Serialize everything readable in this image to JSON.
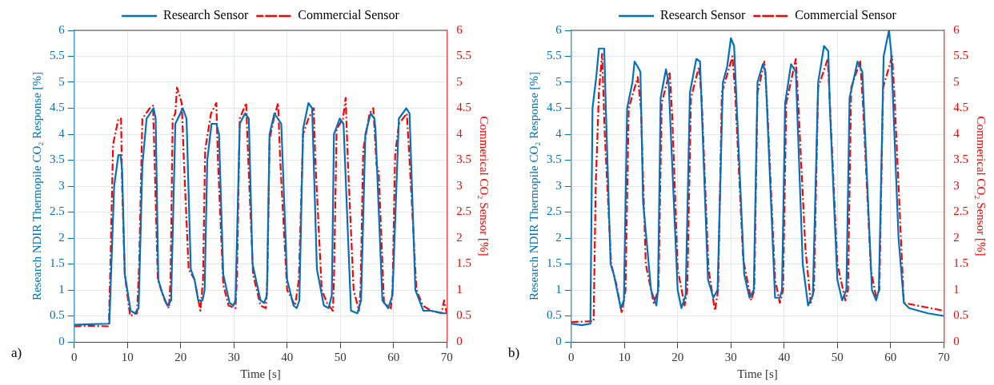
{
  "chart_data": [
    {
      "type": "line",
      "xlabel": "Time [s]",
      "ylabel": "Research NDIR Thermopile CO₂ Response [%]",
      "y2label": "Commerical CO₂ Sensor [%]",
      "annotations": [
        "a)"
      ],
      "xlim": [
        0,
        70
      ],
      "xticks": [
        0,
        10,
        20,
        30,
        40,
        50,
        60,
        70
      ],
      "ylim": [
        0,
        6
      ],
      "yticks": [
        0,
        0.5,
        1,
        1.5,
        2,
        2.5,
        3,
        3.5,
        4,
        4.5,
        5,
        5.5,
        6
      ],
      "y2lim": [
        0,
        6
      ],
      "y2ticks": [
        0,
        0.5,
        1,
        1.5,
        2,
        2.5,
        3,
        3.5,
        4,
        4.5,
        5,
        5.5,
        6
      ],
      "grid": true,
      "legend": "top",
      "marker": "none",
      "series": [
        {
          "name": "Research Sensor",
          "color": "#0072bd",
          "line_style": "solid",
          "x": [
            0,
            3,
            6.6,
            7.5,
            8.3,
            8.7,
            9.0,
            9.5,
            10.6,
            11.4,
            12.1,
            12.8,
            13.6,
            14.9,
            15.3,
            15.8,
            16.5,
            17.5,
            18.2,
            19,
            20.4,
            21.1,
            21.9,
            22.6,
            23.3,
            24.1,
            24.5,
            25,
            25.8,
            26.7,
            27.2,
            28,
            29.2,
            29.9,
            30.3,
            31.1,
            32.1,
            32.8,
            33.5,
            35,
            35.7,
            36.2,
            36.7,
            37.6,
            38.9,
            40,
            41.2,
            41.8,
            42.3,
            43,
            44,
            44.7,
            45.6,
            46.9,
            47.8,
            48.4,
            48.8,
            49.9,
            50.6,
            52,
            53.2,
            53.9,
            54.7,
            55.7,
            56.4,
            56.6,
            57.9,
            59,
            59.8,
            61,
            62.4,
            63,
            64.1,
            65.6,
            67,
            69.5,
            70
          ],
          "values": [
            0.33,
            0.34,
            0.35,
            3.0,
            3.6,
            3.6,
            3.3,
            1.3,
            0.6,
            0.55,
            0.65,
            3.4,
            4.3,
            4.5,
            4.3,
            1.2,
            0.95,
            0.7,
            0.8,
            4.2,
            4.5,
            4.3,
            1.4,
            1.2,
            0.8,
            0.8,
            1.0,
            3.5,
            4.2,
            4.2,
            4.0,
            1.3,
            0.75,
            0.7,
            0.8,
            4.2,
            4.4,
            4.3,
            1.5,
            0.8,
            0.75,
            0.9,
            4.0,
            4.4,
            4.2,
            1.2,
            0.7,
            0.65,
            0.8,
            4.1,
            4.6,
            4.5,
            1.4,
            0.7,
            0.65,
            0.9,
            4.0,
            4.3,
            4.2,
            0.6,
            0.55,
            0.8,
            4.0,
            4.4,
            4.3,
            4.1,
            0.8,
            0.65,
            0.9,
            4.3,
            4.5,
            4.4,
            1.0,
            0.6,
            0.6,
            0.55,
            0.55
          ]
        },
        {
          "name": "Commercial Sensor",
          "color": "#ff0000",
          "line_style": "dashed",
          "axis": "y2",
          "x": [
            0,
            3,
            6.5,
            6.8,
            7.3,
            8.3,
            8.8,
            9.0,
            9.5,
            10.5,
            11.8,
            12.2,
            12.8,
            14.2,
            14.8,
            15.1,
            15.7,
            17,
            17.8,
            18.1,
            18.5,
            19,
            19.3,
            20.2,
            20.6,
            21.5,
            22.6,
            23.7,
            24.2,
            24.6,
            25.7,
            26.7,
            27,
            28,
            29,
            30.3,
            30.6,
            31.1,
            32.3,
            32.7,
            33.6,
            35,
            36,
            36.3,
            36.7,
            37.5,
            38.3,
            38.7,
            40,
            41.5,
            42.2,
            43,
            44,
            45,
            45.3,
            46.5,
            47.5,
            48.6,
            48.8,
            49.3,
            50.5,
            51,
            51.4,
            52.5,
            53.5,
            53.8,
            54.3,
            55.5,
            56.2,
            56.8,
            57.2,
            58.2,
            59.5,
            59.8,
            60.3,
            61,
            62.5,
            63,
            64.3,
            65.5,
            67,
            69,
            69.5,
            70
          ],
          "values": [
            0.3,
            0.31,
            0.3,
            1.5,
            3.8,
            4.3,
            4.3,
            3.0,
            1.3,
            0.5,
            0.55,
            1.5,
            4.3,
            4.5,
            4.55,
            3.5,
            1.2,
            0.8,
            0.65,
            1.2,
            4.3,
            4.4,
            4.9,
            4.6,
            3.5,
            1.4,
            1.2,
            0.6,
            1.2,
            3.7,
            4.4,
            4.6,
            3.5,
            1.1,
            0.7,
            0.65,
            1.3,
            4.3,
            4.6,
            3.5,
            1.3,
            0.7,
            0.65,
            1.2,
            3.9,
            4.3,
            4.6,
            3.5,
            1.0,
            0.7,
            1.2,
            4.0,
            4.3,
            4.5,
            3.5,
            1.0,
            0.75,
            0.6,
            1.2,
            4.1,
            4.3,
            4.7,
            3.5,
            1.0,
            0.6,
            1.0,
            3.7,
            4.4,
            4.5,
            3.4,
            3.3,
            0.75,
            0.65,
            1.0,
            3.6,
            4.2,
            4.4,
            3.5,
            1.0,
            0.7,
            0.6,
            0.55,
            0.8,
            0.55
          ]
        }
      ]
    },
    {
      "type": "line",
      "xlabel": "Time [s]",
      "ylabel": "Research NDIR Thermopile CO₂ Response [%]",
      "y2label": "Commerical CO₂ Sensor [%]",
      "annotations": [
        "b)"
      ],
      "xlim": [
        0,
        70
      ],
      "xticks": [
        0,
        10,
        20,
        30,
        40,
        50,
        60,
        70
      ],
      "ylim": [
        0,
        6
      ],
      "yticks": [
        0,
        0.5,
        1,
        1.5,
        2,
        2.5,
        3,
        3.5,
        4,
        4.5,
        5,
        5.5,
        6
      ],
      "y2lim": [
        0,
        6
      ],
      "y2ticks": [
        0,
        0.5,
        1,
        1.5,
        2,
        2.5,
        3,
        3.5,
        4,
        4.5,
        5,
        5.5,
        6
      ],
      "grid": true,
      "legend": "top",
      "marker": "none",
      "series": [
        {
          "name": "Research Sensor",
          "color": "#0072bd",
          "line_style": "solid",
          "x": [
            0,
            2,
            3.6,
            4.0,
            4.7,
            5.2,
            6.2,
            6.5,
            7.4,
            8,
            9.3,
            9.9,
            10.5,
            11.5,
            11.9,
            12.5,
            13.0,
            13.5,
            15,
            16,
            16.3,
            16.8,
            17.8,
            18.3,
            20,
            20.7,
            21.5,
            22.3,
            23.5,
            24.2,
            25.7,
            26.7,
            27.5,
            28.5,
            29.3,
            30,
            30.6,
            32.5,
            33.5,
            34.3,
            35,
            36,
            36.5,
            38.3,
            39.2,
            39.6,
            40.2,
            41.3,
            42.2,
            43.5,
            44.5,
            45.4,
            46.4,
            47.5,
            48.3,
            48.6,
            50,
            50.9,
            51.7,
            52.3,
            53.8,
            54.7,
            56.5,
            57.3,
            57.8,
            58.7,
            59.7,
            60.1,
            61.5,
            62.5,
            63.5,
            67,
            70
          ],
          "values": [
            0.35,
            0.32,
            0.35,
            4.5,
            5.1,
            5.65,
            5.65,
            4.5,
            1.5,
            1.3,
            0.65,
            0.8,
            4.5,
            5.0,
            5.4,
            5.3,
            5.2,
            2.7,
            1.0,
            0.7,
            1.0,
            4.7,
            5.25,
            5.0,
            1.0,
            0.65,
            0.9,
            4.8,
            5.45,
            5.4,
            1.2,
            0.85,
            1.0,
            5.0,
            5.3,
            5.85,
            5.7,
            1.3,
            0.85,
            1.0,
            5.0,
            5.35,
            5.2,
            0.85,
            0.85,
            1.0,
            4.6,
            5.35,
            5.2,
            1.5,
            0.7,
            0.9,
            5.0,
            5.7,
            5.6,
            4.5,
            1.2,
            0.8,
            1.0,
            4.7,
            5.4,
            5.2,
            1.0,
            0.8,
            1.0,
            5.5,
            6.0,
            5.6,
            2.0,
            0.75,
            0.65,
            0.55,
            0.5
          ]
        },
        {
          "name": "Commercial Sensor",
          "color": "#ff0000",
          "line_style": "dashed",
          "axis": "y2",
          "x": [
            0,
            4.2,
            4.6,
            5.2,
            5.8,
            6.3,
            7.5,
            8.5,
            9.5,
            10.2,
            10.8,
            12.5,
            13.1,
            14,
            15.5,
            16.4,
            17.0,
            18.5,
            19,
            20,
            21.3,
            21.8,
            22.5,
            24,
            24.5,
            25.8,
            27,
            27.6,
            28.3,
            30.3,
            30.8,
            32.3,
            33.8,
            34.4,
            35,
            36.3,
            36.8,
            38.3,
            39.2,
            39.8,
            40.4,
            42.2,
            42.6,
            44,
            45,
            45.6,
            46.4,
            48.2,
            48.6,
            50,
            51.5,
            52,
            52.6,
            54.3,
            54.8,
            56.3,
            57.3,
            57.9,
            58.6,
            60.3,
            60.7,
            62.5,
            65,
            70
          ],
          "values": [
            0.38,
            0.4,
            3.0,
            4.8,
            5.55,
            4.0,
            1.5,
            1.1,
            0.55,
            1.0,
            4.5,
            5.1,
            4.5,
            1.5,
            0.75,
            1.0,
            4.6,
            5.2,
            4.3,
            1.4,
            0.7,
            1.0,
            4.7,
            5.3,
            4.7,
            1.4,
            0.6,
            1.0,
            4.8,
            5.5,
            4.8,
            1.6,
            0.8,
            1.0,
            4.8,
            5.4,
            4.6,
            1.2,
            0.75,
            1.0,
            4.6,
            5.45,
            4.7,
            1.8,
            0.75,
            1.0,
            4.9,
            5.45,
            4.6,
            1.5,
            0.8,
            1.0,
            4.9,
            5.4,
            4.6,
            1.4,
            0.85,
            1.0,
            4.9,
            5.5,
            4.8,
            0.75,
            0.7,
            0.6
          ]
        }
      ]
    }
  ]
}
